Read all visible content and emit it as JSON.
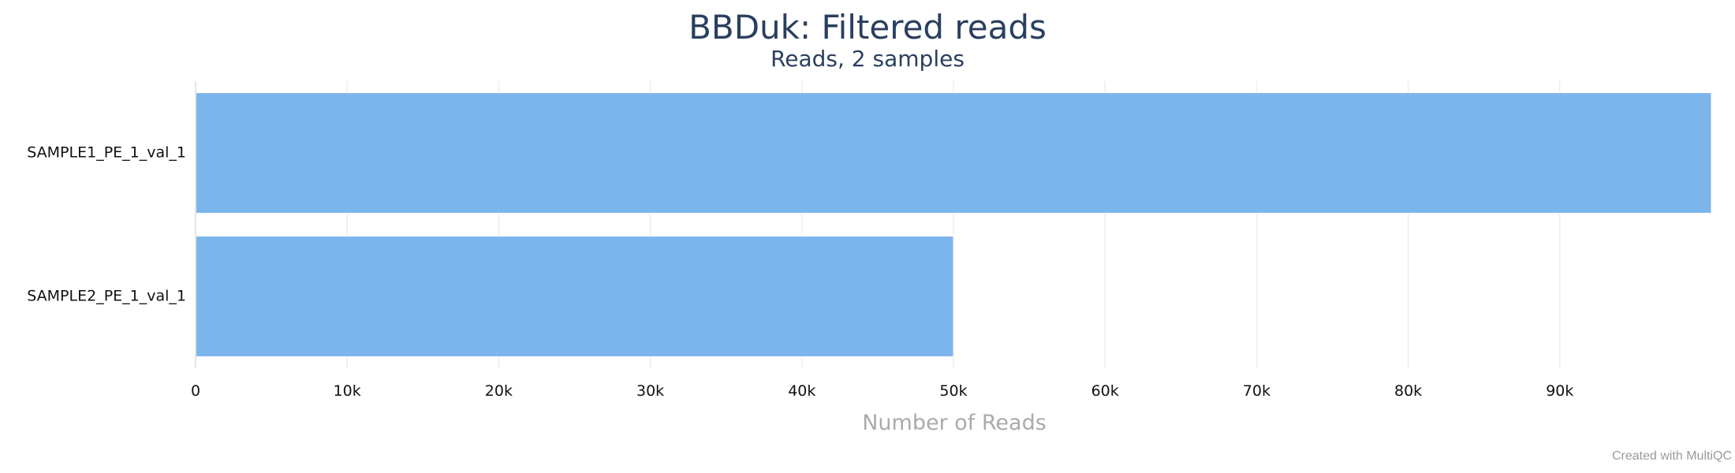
{
  "chart_data": {
    "type": "bar",
    "orientation": "horizontal",
    "title": "BBDuk: Filtered reads",
    "subtitle": "Reads, 2 samples",
    "xlabel": "Number of Reads",
    "ylabel": "",
    "categories": [
      "SAMPLE1_PE_1_val_1",
      "SAMPLE2_PE_1_val_1"
    ],
    "values": [
      100000,
      50000
    ],
    "xlim": [
      0,
      100000
    ],
    "x_ticks": [
      0,
      10000,
      20000,
      30000,
      40000,
      50000,
      60000,
      70000,
      80000,
      90000
    ],
    "x_tick_labels": [
      "0",
      "10k",
      "20k",
      "30k",
      "40k",
      "50k",
      "60k",
      "70k",
      "80k",
      "90k"
    ],
    "bar_color": "#7cb4ec",
    "grid": true,
    "legend": "none"
  },
  "footer": {
    "credit": "Created with MultiQC"
  }
}
